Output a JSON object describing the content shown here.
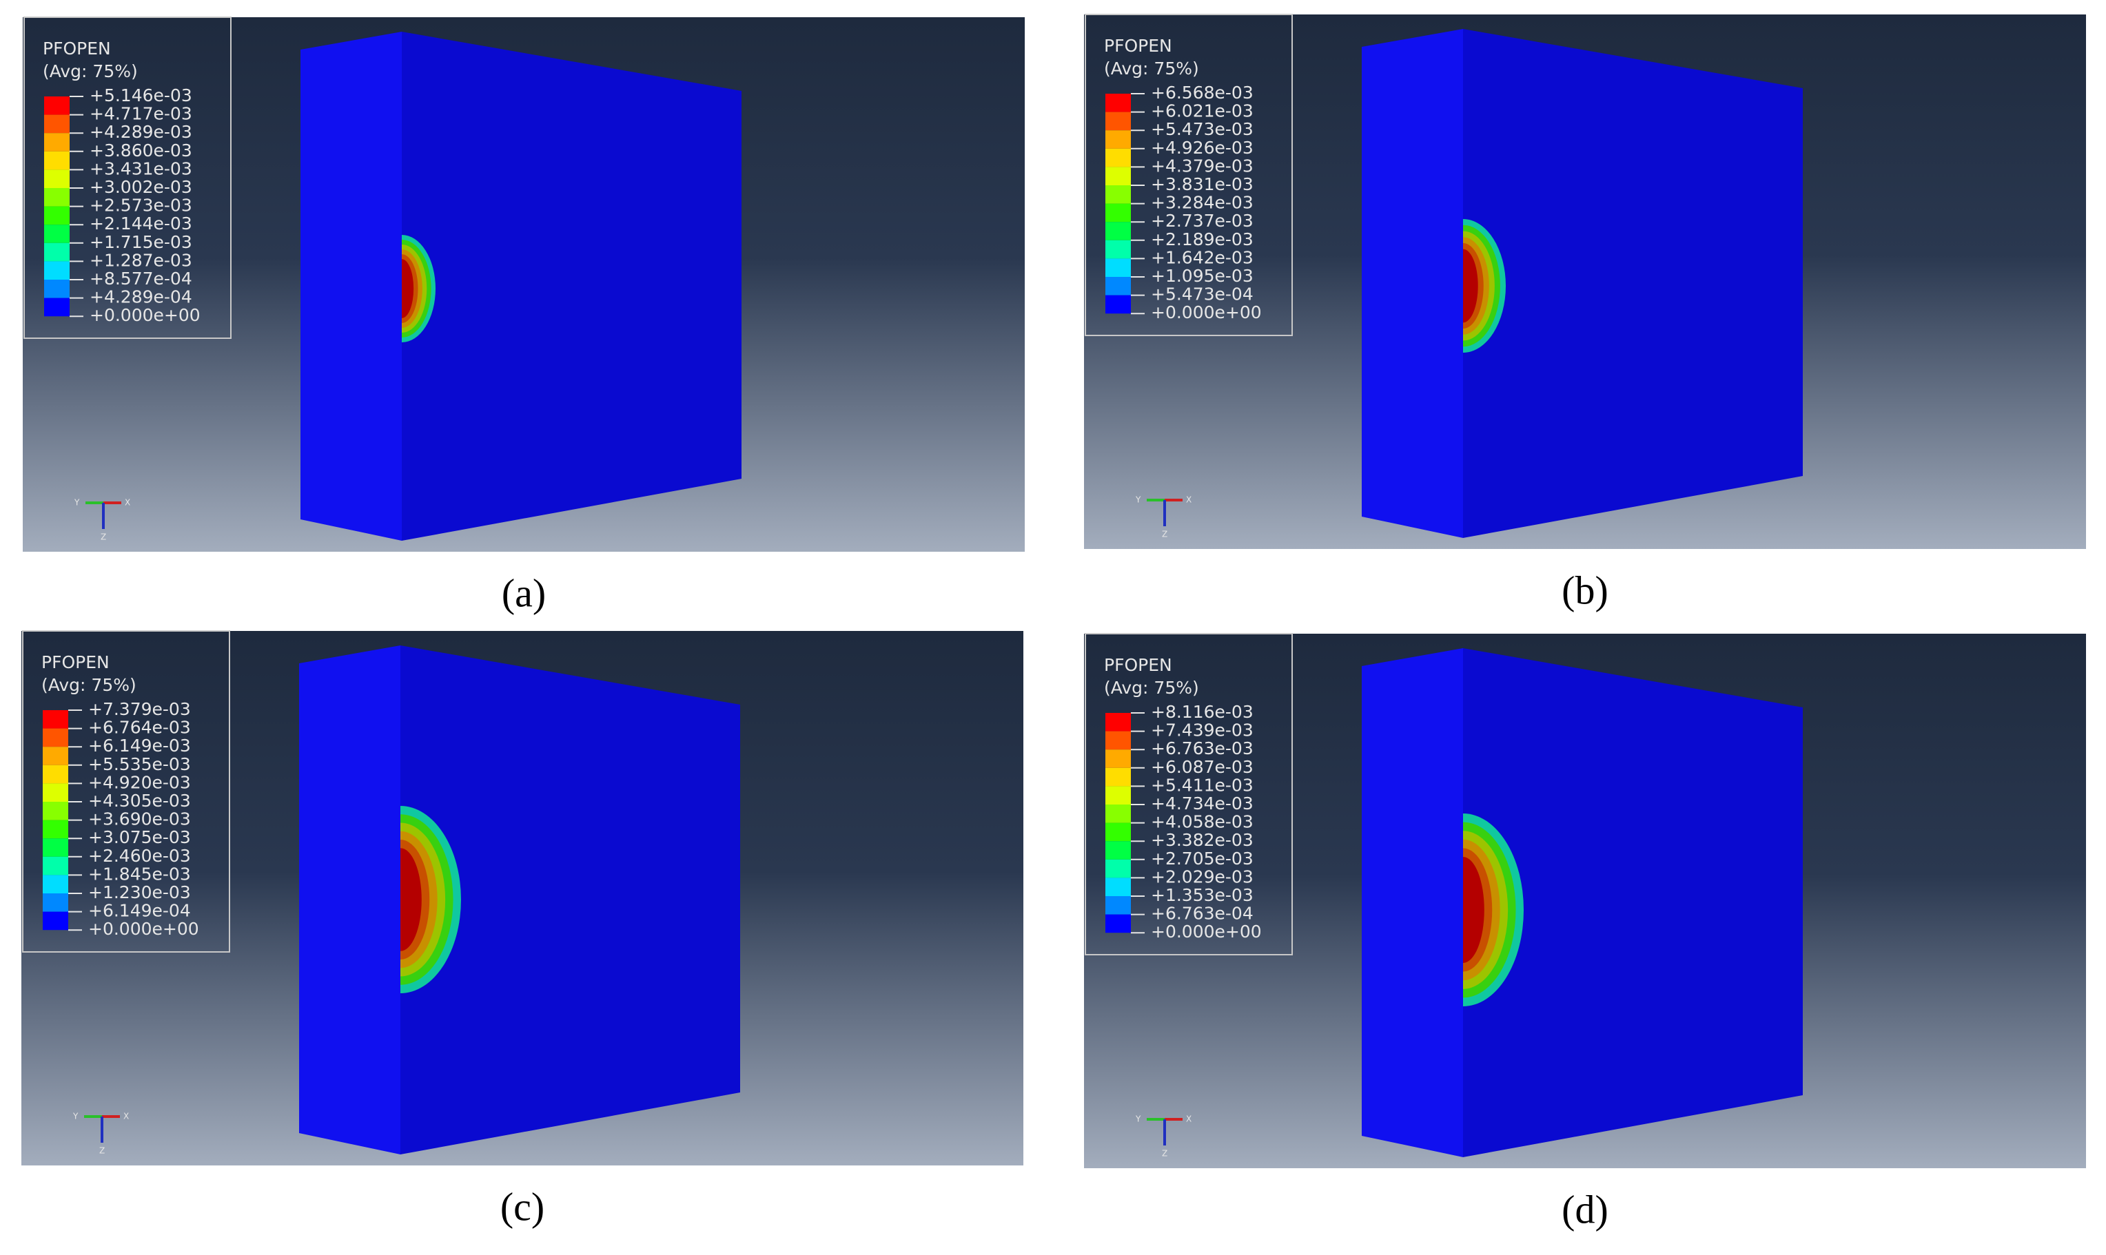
{
  "panels": [
    {
      "legend": {
        "title": "PFOPEN",
        "subtitle": "(Avg: 75%)",
        "labels": [
          "+5.146e-03",
          "+4.717e-03",
          "+4.289e-03",
          "+3.860e-03",
          "+3.431e-03",
          "+3.002e-03",
          "+2.573e-03",
          "+2.144e-03",
          "+1.715e-03",
          "+1.287e-03",
          "+8.577e-04",
          "+4.289e-04",
          "+0.000e+00"
        ]
      },
      "triad": {
        "y": "Y",
        "x": "X",
        "z": "Z"
      },
      "caption": "(a)"
    },
    {
      "legend": {
        "title": "PFOPEN",
        "subtitle": "(Avg: 75%)",
        "labels": [
          "+6.568e-03",
          "+6.021e-03",
          "+5.473e-03",
          "+4.926e-03",
          "+4.379e-03",
          "+3.831e-03",
          "+3.284e-03",
          "+2.737e-03",
          "+2.189e-03",
          "+1.642e-03",
          "+1.095e-03",
          "+5.473e-04",
          "+0.000e+00"
        ]
      },
      "triad": {
        "y": "Y",
        "x": "X",
        "z": "Z"
      },
      "caption": "(b)"
    },
    {
      "legend": {
        "title": "PFOPEN",
        "subtitle": "(Avg: 75%)",
        "labels": [
          "+7.379e-03",
          "+6.764e-03",
          "+6.149e-03",
          "+5.535e-03",
          "+4.920e-03",
          "+4.305e-03",
          "+3.690e-03",
          "+3.075e-03",
          "+2.460e-03",
          "+1.845e-03",
          "+1.230e-03",
          "+6.149e-04",
          "+0.000e+00"
        ]
      },
      "triad": {
        "y": "Y",
        "x": "X",
        "z": "Z"
      },
      "caption": "(c)"
    },
    {
      "legend": {
        "title": "PFOPEN",
        "subtitle": "(Avg: 75%)",
        "labels": [
          "+8.116e-03",
          "+7.439e-03",
          "+6.763e-03",
          "+6.087e-03",
          "+5.411e-03",
          "+4.734e-03",
          "+4.058e-03",
          "+3.382e-03",
          "+2.705e-03",
          "+2.029e-03",
          "+1.353e-03",
          "+6.763e-04",
          "+0.000e+00"
        ]
      },
      "triad": {
        "y": "Y",
        "x": "X",
        "z": "Z"
      },
      "caption": "(d)"
    }
  ]
}
